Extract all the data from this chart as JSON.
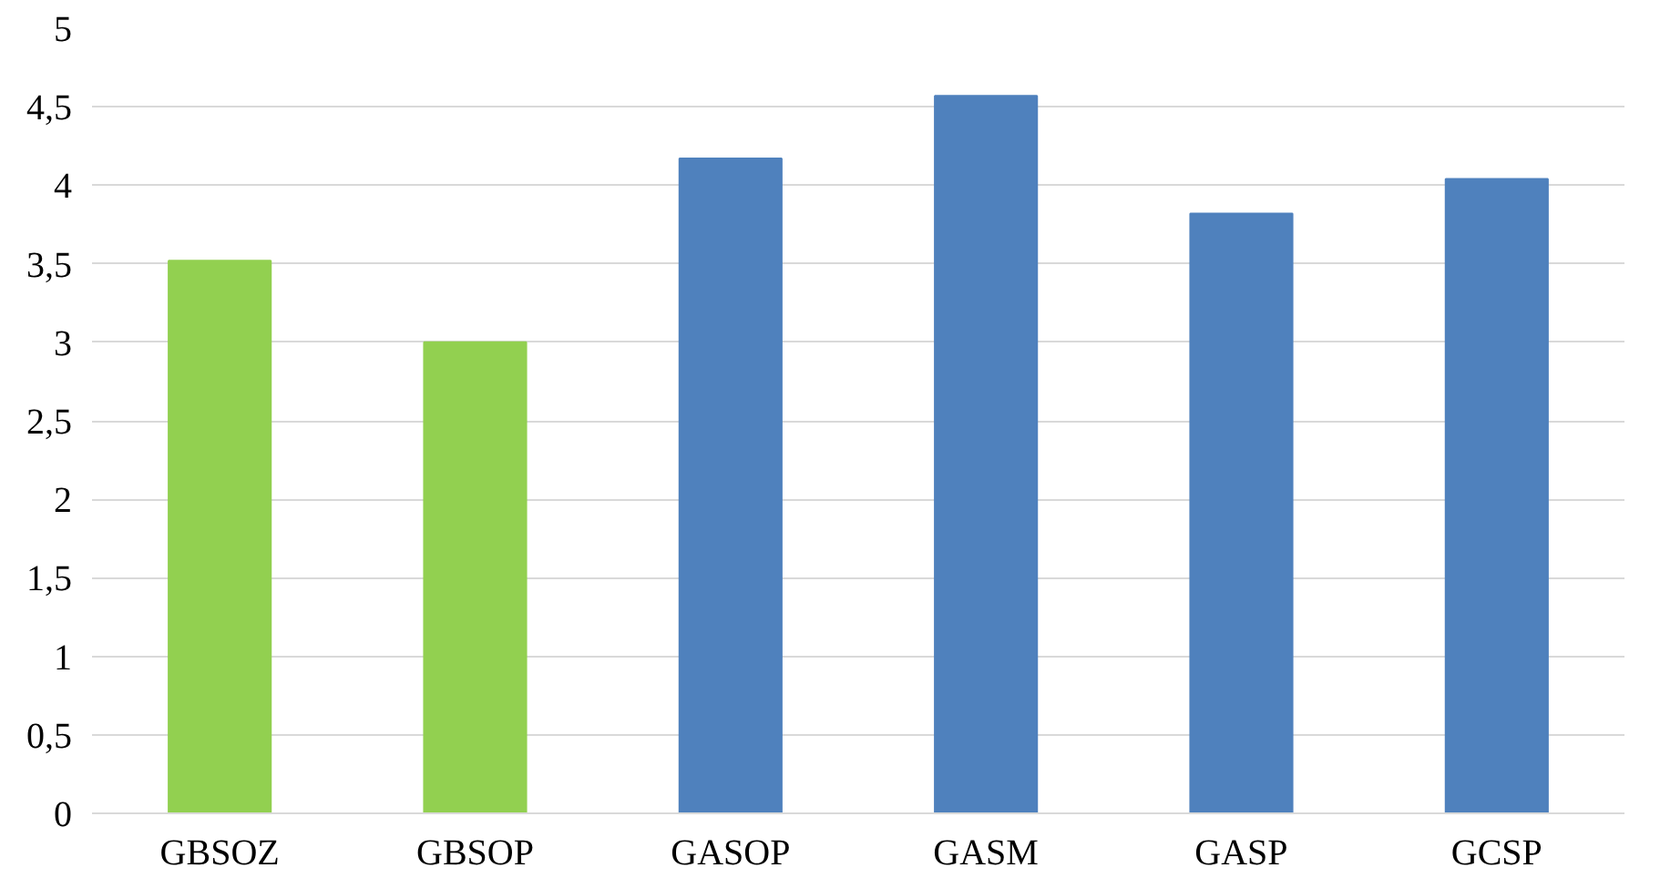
{
  "chart_data": {
    "type": "bar",
    "categories": [
      "GBSOZ",
      "GBSOP",
      "GASOP",
      "GASM",
      "GASP",
      "GCSP"
    ],
    "values": [
      3.52,
      3.0,
      4.17,
      4.57,
      3.82,
      4.04
    ],
    "colors": [
      "#92d050",
      "#92d050",
      "#4f81bd",
      "#4f81bd",
      "#4f81bd",
      "#4f81bd"
    ],
    "ylim": [
      0,
      5
    ],
    "yticks": [
      0,
      {
        "value": 0.5,
        "label": "0,5"
      },
      1,
      {
        "value": 1.5,
        "label": "1,5"
      },
      2,
      {
        "value": 2.5,
        "label": "2,5"
      },
      3,
      {
        "value": 3.5,
        "label": "3,5"
      },
      4,
      {
        "value": 4.5,
        "label": "4,5"
      },
      5
    ],
    "grid": "y"
  }
}
